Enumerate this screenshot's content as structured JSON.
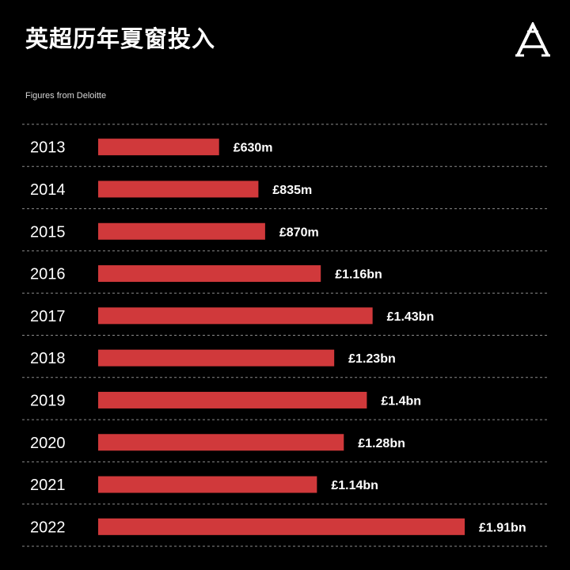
{
  "header": {
    "title": "英超历年夏窗投入",
    "subtitle": "Figures from Deloitte",
    "logo_icon": "athletic-a-logo-icon"
  },
  "colors": {
    "background": "#000000",
    "bar": "#d0393b",
    "text": "#ffffff",
    "divider": "#8a8a8a"
  },
  "chart_data": {
    "type": "bar",
    "orientation": "horizontal",
    "title": "英超历年夏窗投入",
    "subtitle": "Figures from Deloitte",
    "unit": "£m",
    "categories": [
      "2013",
      "2014",
      "2015",
      "2016",
      "2017",
      "2018",
      "2019",
      "2020",
      "2021",
      "2022"
    ],
    "values": [
      630,
      835,
      870,
      1160,
      1430,
      1230,
      1400,
      1280,
      1140,
      1910
    ],
    "value_labels": [
      "£630m",
      "£835m",
      "£870m",
      "£1.16bn",
      "£1.43bn",
      "£1.23bn",
      "£1.4bn",
      "£1.28bn",
      "£1.14bn",
      "£1.91bn"
    ],
    "xlim": [
      0,
      1910
    ],
    "grid": "dashed row dividers",
    "legend": "none"
  }
}
